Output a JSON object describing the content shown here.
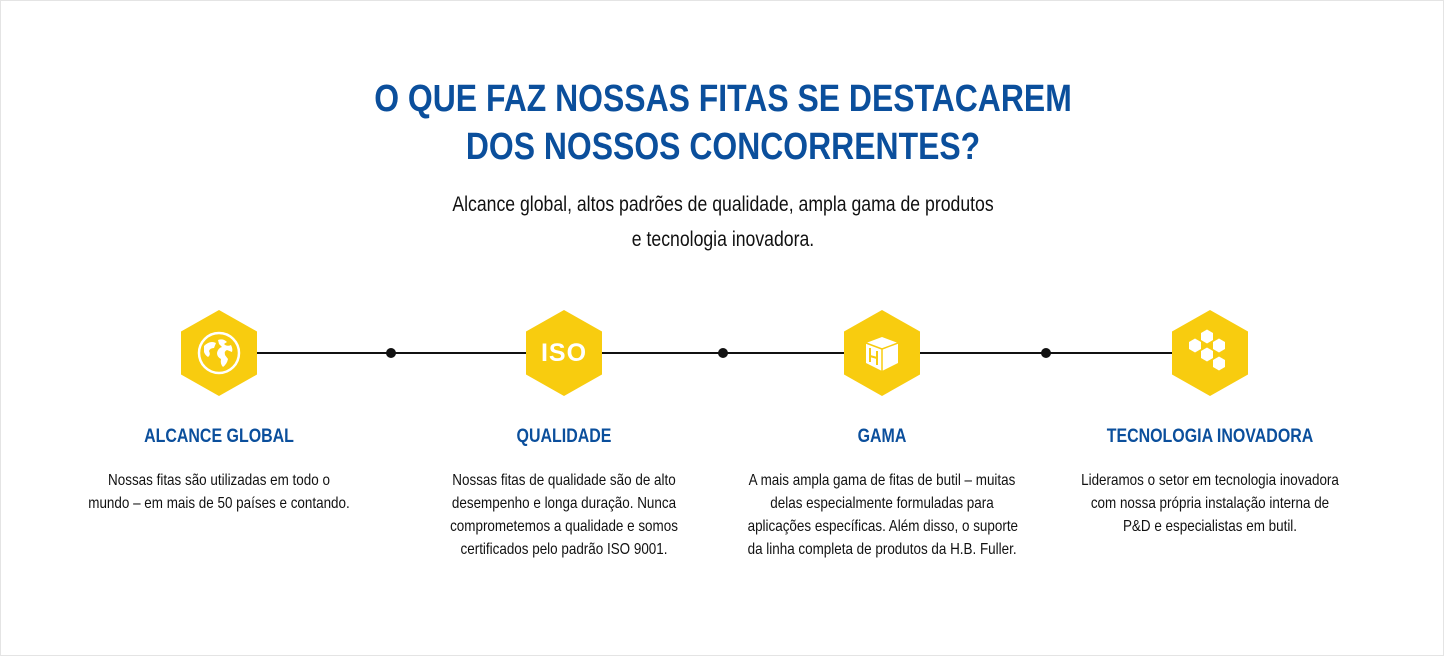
{
  "header": {
    "title_lines": [
      "O QUE FAZ NOSSAS FITAS SE DESTACAREM",
      "DOS NOSSOS CONCORRENTES?"
    ],
    "subtitle_lines": [
      "Alcance global, altos padrões de qualidade, ampla gama de produtos",
      "e tecnologia inovadora."
    ]
  },
  "colors": {
    "accent_blue": "#0b4f9c",
    "hex_yellow": "#f8cc0f",
    "line": "#111111"
  },
  "features": [
    {
      "icon": "globe-icon",
      "title": "ALCANCE GLOBAL",
      "lines": [
        "Nossas fitas são utilizadas em todo o",
        "mundo – em mais de 50 países e contando."
      ]
    },
    {
      "icon": "iso-icon",
      "icon_text": "ISO",
      "title": "QUALIDADE",
      "lines": [
        "Nossas fitas de qualidade são de alto",
        "desempenho e longa duração. Nunca",
        "comprometemos a qualidade e somos",
        "certificados pelo padrão ISO 9001."
      ]
    },
    {
      "icon": "box-icon",
      "title": "GAMA",
      "lines": [
        "A mais ampla gama de fitas de butil – muitas",
        "delas especialmente formuladas para",
        "aplicações específicas. Além disso, o suporte",
        "da linha completa de produtos da H.B. Fuller."
      ]
    },
    {
      "icon": "honeycomb-icon",
      "title": "TECNOLOGIA INOVADORA",
      "lines": [
        "Lideramos o setor em tecnologia inovadora",
        "com nossa própria instalação interna de",
        "P&D e especialistas em butil."
      ]
    }
  ]
}
